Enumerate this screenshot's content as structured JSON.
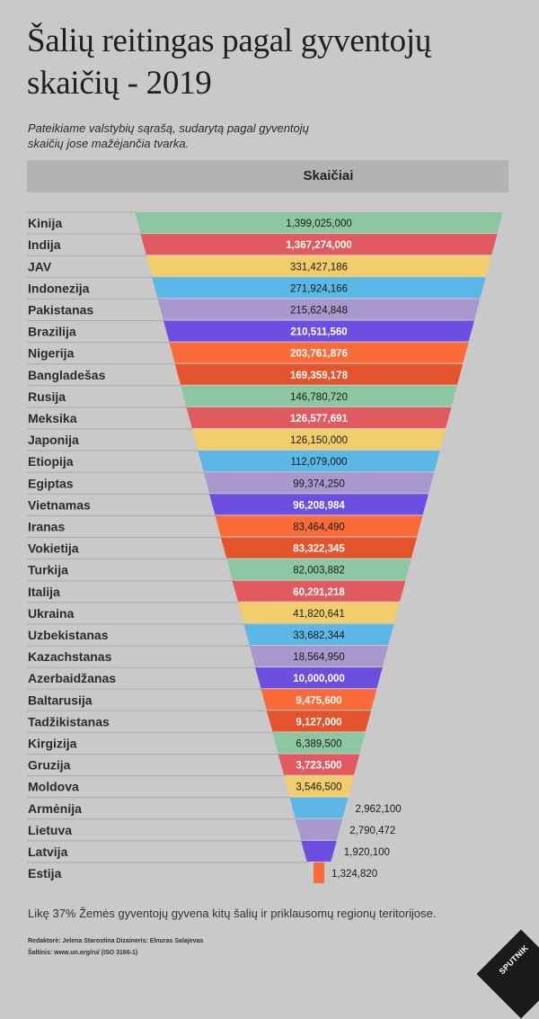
{
  "title": "Šalių reitingas pagal gyventojų skaičių - 2019",
  "subtitle": "Pateikiame valstybių sąrašą, sudarytą pagal gyventojų skaičių jose mažėjančia tvarka.",
  "column_header": "Skaičiai",
  "note": "Likę 37% Žemės gyventojų gyvena kitų šalių ir priklausomų regionų teritorijose.",
  "credits": {
    "line1": "Redaktorė: Jelena Starostina Dizaineris: Elnuras Salajevas",
    "line2": "Šaltinis: www.un.org/ru/ (ISO 3166-1)"
  },
  "logo_text": "SPUTNIK",
  "colors": [
    "#8cc7a1",
    "#e05a5f",
    "#f2cd6b",
    "#5bb7e5",
    "#a998cd",
    "#6c4fe1",
    "#fa6b39",
    "#e4532c"
  ],
  "chart_data": {
    "type": "bar",
    "title": "Šalių reitingas pagal gyventojų skaičių - 2019",
    "categories": [
      "Kinija",
      "Indija",
      "JAV",
      "Indonezija",
      "Pakistanas",
      "Brazilija",
      "Nigerija",
      "Bangladešas",
      "Rusija",
      "Meksika",
      "Japonija",
      "Etiopija",
      "Egiptas",
      "Vietnamas",
      "Iranas",
      "Vokietija",
      "Turkija",
      "Italija",
      "Ukraina",
      "Uzbekistanas",
      "Kazachstanas",
      "Azerbaidžanas",
      "Baltarusija",
      "Tadžikistanas",
      "Kirgizija",
      "Gruzija",
      "Moldova",
      "Armėnija",
      "Lietuva",
      "Latvija",
      "Estija"
    ],
    "values": [
      1399025000,
      1367274000,
      331427186,
      271924166,
      215624848,
      210511560,
      203761876,
      169359178,
      146780720,
      126577691,
      126150000,
      112079000,
      99374250,
      96208984,
      83464490,
      83322345,
      82003882,
      60291218,
      41820641,
      33682344,
      18564950,
      10000000,
      9475600,
      9127000,
      6389500,
      3723500,
      3546500,
      2962100,
      2790472,
      1920100,
      1324820
    ],
    "value_labels": [
      "1,399,025,000",
      "1,367,274,000",
      "331,427,186",
      "271,924,166",
      "215,624,848",
      "210,511,560",
      "203,761,876",
      "169,359,178",
      "146,780,720",
      "126,577,691",
      "126,150,000",
      "112,079,000",
      "99,374,250",
      "96,208,984",
      "83,464,490",
      "83,322,345",
      "82,003,882",
      "60,291,218",
      "41,820,641",
      "33,682,344",
      "18,564,950",
      "10,000,000",
      "9,475,600",
      "9,127,000",
      "6,389,500",
      "3,723,500",
      "3,546,500",
      "2,962,100",
      "2,790,472",
      "1,920,100",
      "1,324,820"
    ],
    "xlabel": "",
    "ylabel": "",
    "column_header": "Skaičiai",
    "grid": false,
    "legend": false
  }
}
